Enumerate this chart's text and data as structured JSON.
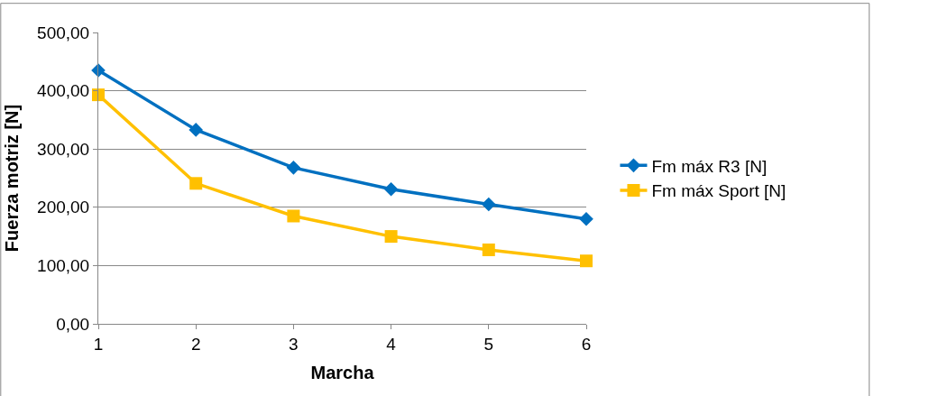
{
  "chart_data": {
    "type": "line",
    "xlabel": "Marcha",
    "ylabel": "Fuerza motriz [N]",
    "categories": [
      "1",
      "2",
      "3",
      "4",
      "5",
      "6"
    ],
    "series": [
      {
        "name": "Fm máx R3 [N]",
        "color": "#0070c0",
        "marker": "diamond",
        "values": [
          435,
          333,
          268,
          231,
          205,
          180
        ]
      },
      {
        "name": "Fm máx Sport [N]",
        "color": "#ffc000",
        "marker": "square",
        "values": [
          393,
          241,
          185,
          150,
          127,
          108
        ]
      }
    ],
    "ylim": [
      0,
      500
    ],
    "yticks": [
      {
        "value": 0,
        "label": "0,00"
      },
      {
        "value": 100,
        "label": "100,00"
      },
      {
        "value": 200,
        "label": "200,00"
      },
      {
        "value": 300,
        "label": "300,00"
      },
      {
        "value": 400,
        "label": "400,00"
      },
      {
        "value": 500,
        "label": "500,00"
      }
    ],
    "grid": "y",
    "legend": "right",
    "line_style": "solid"
  }
}
